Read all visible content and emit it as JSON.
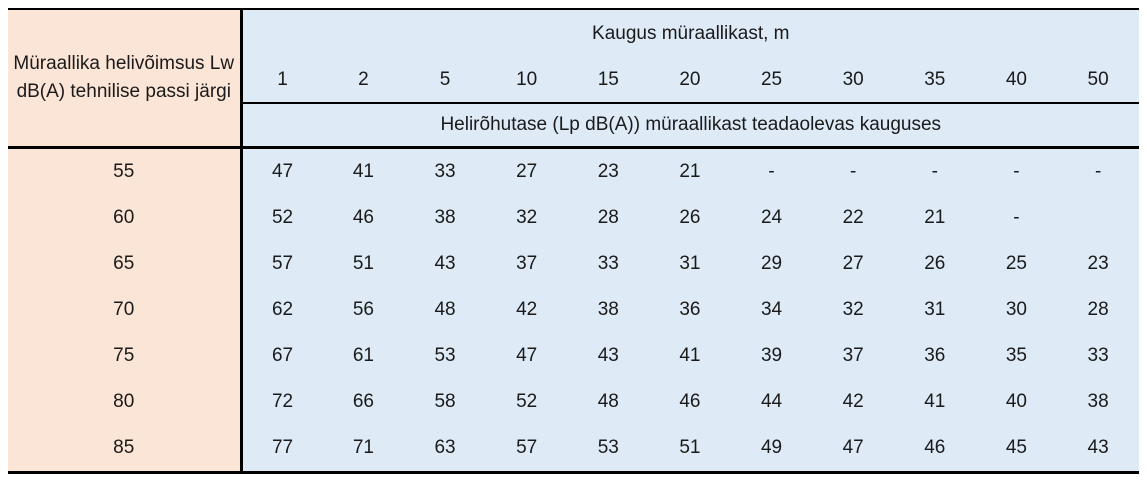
{
  "colors": {
    "left_column_bg": "#FBE5D6",
    "data_area_bg": "#DEEBF7",
    "border": "#000000",
    "text": "#1a1a1a"
  },
  "chart_data": {
    "type": "table",
    "title": "Kaugus müraallikast, m",
    "row_header_label": "Müraallika helivõimsus Lw dB(A) tehnilise passi järgi",
    "value_label": "Helirõhutase (Lp dB(A)) müraallikast teadaolevas kauguses",
    "distances_m": [
      "1",
      "2",
      "5",
      "10",
      "15",
      "20",
      "25",
      "30",
      "35",
      "40",
      "50"
    ],
    "rows": [
      {
        "lw": "55",
        "values": [
          "47",
          "41",
          "33",
          "27",
          "23",
          "21",
          "-",
          "-",
          "-",
          "-",
          "-"
        ]
      },
      {
        "lw": "60",
        "values": [
          "52",
          "46",
          "38",
          "32",
          "28",
          "26",
          "24",
          "22",
          "21",
          "-",
          ""
        ]
      },
      {
        "lw": "65",
        "values": [
          "57",
          "51",
          "43",
          "37",
          "33",
          "31",
          "29",
          "27",
          "26",
          "25",
          "23"
        ]
      },
      {
        "lw": "70",
        "values": [
          "62",
          "56",
          "48",
          "42",
          "38",
          "36",
          "34",
          "32",
          "31",
          "30",
          "28"
        ]
      },
      {
        "lw": "75",
        "values": [
          "67",
          "61",
          "53",
          "47",
          "43",
          "41",
          "39",
          "37",
          "36",
          "35",
          "33"
        ]
      },
      {
        "lw": "80",
        "values": [
          "72",
          "66",
          "58",
          "52",
          "48",
          "46",
          "44",
          "42",
          "41",
          "40",
          "38"
        ]
      },
      {
        "lw": "85",
        "values": [
          "77",
          "71",
          "63",
          "57",
          "53",
          "51",
          "49",
          "47",
          "46",
          "45",
          "43"
        ]
      }
    ]
  }
}
